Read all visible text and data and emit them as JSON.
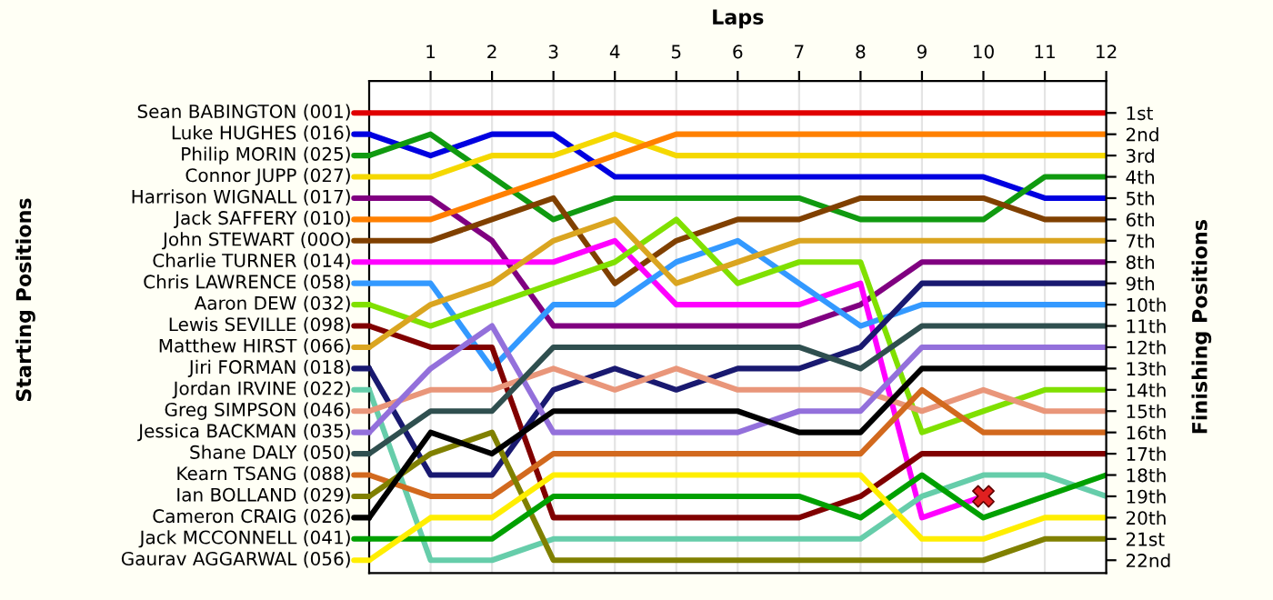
{
  "chart_data": {
    "type": "line",
    "xlabel": "Laps",
    "ylabel": "Finishing Positions",
    "annotations": [
      "Starting Positions"
    ],
    "x": [
      0,
      1,
      2,
      3,
      4,
      5,
      6,
      7,
      8,
      9,
      10,
      11,
      12
    ],
    "xlim": [
      0,
      12
    ],
    "xticks": [
      1,
      2,
      3,
      4,
      5,
      6,
      7,
      8,
      9,
      10,
      11,
      12
    ],
    "ylim": [
      22.6,
      -0.5
    ],
    "yticks": [
      {
        "value": 1,
        "label": "1st"
      },
      {
        "value": 2,
        "label": "2nd"
      },
      {
        "value": 3,
        "label": "3rd"
      },
      {
        "value": 4,
        "label": "4th"
      },
      {
        "value": 5,
        "label": "5th"
      },
      {
        "value": 6,
        "label": "6th"
      },
      {
        "value": 7,
        "label": "7th"
      },
      {
        "value": 8,
        "label": "8th"
      },
      {
        "value": 9,
        "label": "9th"
      },
      {
        "value": 10,
        "label": "10th"
      },
      {
        "value": 11,
        "label": "11th"
      },
      {
        "value": 12,
        "label": "12th"
      },
      {
        "value": 13,
        "label": "13th"
      },
      {
        "value": 14,
        "label": "14th"
      },
      {
        "value": 15,
        "label": "15th"
      },
      {
        "value": 16,
        "label": "16th"
      },
      {
        "value": 17,
        "label": "17th"
      },
      {
        "value": 18,
        "label": "18th"
      },
      {
        "value": 19,
        "label": "19th"
      },
      {
        "value": 20,
        "label": "20th"
      },
      {
        "value": 21,
        "label": "21st"
      },
      {
        "value": 22,
        "label": "22nd"
      }
    ],
    "grid": "x",
    "legend": "left",
    "marker": "none",
    "line_style": "solid",
    "series": [
      {
        "name": "Sean BABINGTON (001)",
        "color": "#e00000",
        "values": [
          1,
          1,
          1,
          1,
          1,
          1,
          1,
          1,
          1,
          1,
          1,
          1,
          1
        ]
      },
      {
        "name": "Luke HUGHES (016)",
        "color": "#0000e0",
        "values": [
          2,
          3,
          2,
          2,
          4,
          4,
          4,
          4,
          4,
          4,
          4,
          5,
          5
        ]
      },
      {
        "name": "Philip MORIN (025)",
        "color": "#109a10",
        "values": [
          3,
          2,
          4,
          6,
          5,
          5,
          5,
          5,
          6,
          6,
          6,
          4,
          4
        ]
      },
      {
        "name": "Connor JUPP (027)",
        "color": "#f5d800",
        "values": [
          4,
          4,
          3,
          3,
          2,
          3,
          3,
          3,
          3,
          3,
          3,
          3,
          3
        ]
      },
      {
        "name": "Harrison WIGNALL (017)",
        "color": "#800080",
        "values": [
          5,
          5,
          7,
          11,
          11,
          11,
          11,
          11,
          10,
          8,
          8,
          8,
          8
        ]
      },
      {
        "name": "Jack SAFFERY (010)",
        "color": "#ff8000",
        "values": [
          6,
          6,
          5,
          4,
          3,
          2,
          2,
          2,
          2,
          2,
          2,
          2,
          2
        ]
      },
      {
        "name": "John STEWART (00O)",
        "color": "#804000",
        "values": [
          7,
          7,
          6,
          5,
          9,
          7,
          6,
          6,
          5,
          5,
          5,
          6,
          6
        ]
      },
      {
        "name": "Charlie TURNER (014)",
        "color": "#ff00ff",
        "values": [
          8,
          8,
          8,
          8,
          7,
          10,
          10,
          10,
          9,
          20,
          19,
          null,
          null
        ]
      },
      {
        "name": "Chris LAWRENCE (058)",
        "color": "#3399ff",
        "values": [
          9,
          9,
          13,
          10,
          10,
          8,
          7,
          9,
          11,
          10,
          10,
          10,
          10
        ]
      },
      {
        "name": "Aaron DEW (032)",
        "color": "#80e000",
        "values": [
          10,
          11,
          10,
          9,
          8,
          6,
          9,
          8,
          8,
          16,
          15,
          14,
          14
        ]
      },
      {
        "name": "Lewis SEVILLE (098)",
        "color": "#800000",
        "values": [
          11,
          12,
          12,
          20,
          20,
          20,
          20,
          20,
          19,
          17,
          17,
          17,
          17
        ]
      },
      {
        "name": "Matthew HIRST (066)",
        "color": "#daa520",
        "values": [
          12,
          10,
          9,
          7,
          6,
          9,
          8,
          7,
          7,
          7,
          7,
          7,
          7
        ]
      },
      {
        "name": "Jiri FORMAN (018)",
        "color": "#191970",
        "values": [
          13,
          18,
          18,
          14,
          13,
          14,
          13,
          13,
          12,
          9,
          9,
          9,
          9
        ]
      },
      {
        "name": "Jordan IRVINE (022)",
        "color": "#66cdaa",
        "values": [
          14,
          22,
          22,
          21,
          21,
          21,
          21,
          21,
          21,
          19,
          18,
          18,
          19
        ]
      },
      {
        "name": "Greg SIMPSON (046)",
        "color": "#e9967a",
        "values": [
          15,
          14,
          14,
          13,
          14,
          13,
          14,
          14,
          14,
          15,
          14,
          15,
          15
        ]
      },
      {
        "name": "Jessica BACKMAN (035)",
        "color": "#9370db",
        "values": [
          16,
          13,
          11,
          16,
          16,
          16,
          16,
          15,
          15,
          12,
          12,
          12,
          12
        ]
      },
      {
        "name": "Shane DALY (050)",
        "color": "#2f4f4f",
        "values": [
          17,
          15,
          15,
          12,
          12,
          12,
          12,
          12,
          13,
          11,
          11,
          11,
          11
        ]
      },
      {
        "name": "Kearn TSANG (088)",
        "color": "#d2691e",
        "values": [
          18,
          19,
          19,
          17,
          17,
          17,
          17,
          17,
          17,
          14,
          16,
          16,
          16
        ]
      },
      {
        "name": "Ian BOLLAND (029)",
        "color": "#808000",
        "values": [
          19,
          17,
          16,
          22,
          22,
          22,
          22,
          22,
          22,
          22,
          22,
          21,
          21
        ]
      },
      {
        "name": "Cameron CRAIG (026)",
        "color": "#000000",
        "values": [
          20,
          16,
          17,
          15,
          15,
          15,
          15,
          16,
          16,
          13,
          13,
          13,
          13
        ]
      },
      {
        "name": "Jack MCCONNELL (041)",
        "color": "#00a000",
        "values": [
          21,
          21,
          21,
          19,
          19,
          19,
          19,
          19,
          20,
          18,
          20,
          19,
          18
        ]
      },
      {
        "name": "Gaurav AGGARWAL (056)",
        "color": "#ffee00",
        "values": [
          22,
          20,
          20,
          18,
          18,
          18,
          18,
          18,
          18,
          21,
          21,
          20,
          20
        ]
      },
      {
        "type": "scatter",
        "marker": "cross",
        "color": "#e02020",
        "x": [
          10
        ],
        "values": [
          19
        ]
      }
    ]
  }
}
